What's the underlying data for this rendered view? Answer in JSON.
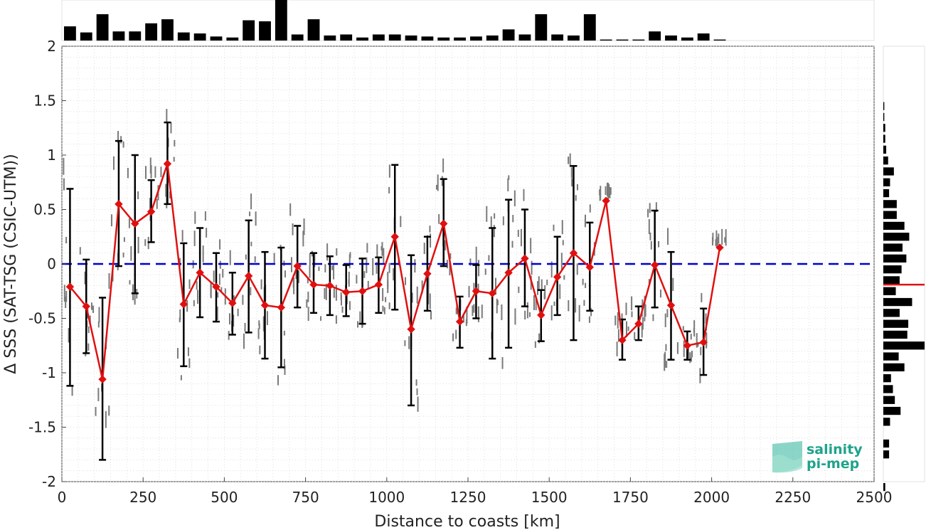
{
  "chart_data": {
    "type": "line",
    "xlabel": "Distance to coasts [km]",
    "ylabel": "Δ SSS (SAT-TSG (CSIC-UTM))",
    "xlim": [
      0,
      2500
    ],
    "ylim": [
      -2,
      2
    ],
    "xticks": [
      "0",
      "250",
      "500",
      "750",
      "1000",
      "1250",
      "1500",
      "1750",
      "2000",
      "2250",
      "2500"
    ],
    "yticks": [
      "2",
      "1.5",
      "1",
      "0.5",
      "0",
      "-0.5",
      "-1",
      "-1.5",
      "-2"
    ],
    "grid": true,
    "reference_line": {
      "y": 0,
      "color": "#0000cc",
      "style": "dashed"
    },
    "mean_line": {
      "y": -0.19,
      "color": "#e01010"
    },
    "series": [
      {
        "color": "#e01010",
        "x": [
          25,
          75,
          125,
          175,
          225,
          275,
          325,
          375,
          425,
          475,
          525,
          575,
          625,
          675,
          725,
          775,
          825,
          875,
          925,
          975,
          1025,
          1075,
          1125,
          1175,
          1225,
          1275,
          1325,
          1375,
          1425,
          1475,
          1525,
          1575,
          1625,
          1675,
          1725,
          1775,
          1825,
          1875,
          1925,
          1975,
          2025
        ],
        "y": [
          -0.21,
          -0.39,
          -1.06,
          0.55,
          0.37,
          0.48,
          0.92,
          -0.37,
          -0.08,
          -0.21,
          -0.36,
          -0.11,
          -0.38,
          -0.4,
          -0.02,
          -0.19,
          -0.2,
          -0.26,
          -0.25,
          -0.19,
          0.25,
          -0.6,
          -0.09,
          0.37,
          -0.53,
          -0.25,
          -0.27,
          -0.08,
          0.05,
          -0.47,
          -0.12,
          0.1,
          -0.03,
          0.58,
          -0.7,
          -0.55,
          -0.01,
          -0.38,
          -0.75,
          -0.72,
          0.15
        ],
        "err_low": [
          -1.12,
          -0.82,
          -1.8,
          -0.02,
          -0.27,
          0.2,
          0.55,
          -0.94,
          -0.49,
          -0.53,
          -0.65,
          -0.63,
          -0.87,
          -0.95,
          -0.4,
          -0.45,
          -0.47,
          -0.48,
          -0.55,
          -0.45,
          -0.42,
          -1.3,
          -0.43,
          -0.02,
          -0.77,
          -0.5,
          -0.87,
          -0.77,
          -0.39,
          -0.71,
          -0.47,
          -0.7,
          -0.43,
          0.58,
          -0.88,
          -0.7,
          -0.4,
          -0.88,
          -0.88,
          -1.02,
          0.15
        ],
        "err_high": [
          0.69,
          0.04,
          -0.31,
          1.13,
          1.0,
          0.77,
          1.3,
          0.19,
          0.33,
          0.1,
          -0.08,
          0.4,
          0.11,
          0.15,
          0.35,
          0.1,
          0.07,
          -0.01,
          0.05,
          0.06,
          0.91,
          0.08,
          0.25,
          0.78,
          -0.3,
          -0.01,
          0.33,
          0.59,
          0.5,
          -0.24,
          0.25,
          0.9,
          0.38,
          0.58,
          -0.51,
          -0.39,
          0.49,
          0.11,
          -0.62,
          -0.41,
          0.15
        ]
      }
    ],
    "top_histogram": {
      "bin_width_km": 50,
      "counts": [
        14,
        8,
        26,
        9,
        9,
        17,
        21,
        8,
        7,
        4,
        3,
        20,
        19,
        40,
        6,
        21,
        5,
        6,
        3,
        6,
        6,
        5,
        4,
        3,
        3,
        4,
        5,
        11,
        6,
        26,
        6,
        5,
        26,
        1,
        1,
        1,
        9,
        5,
        3,
        7,
        1,
        0,
        0,
        0,
        0,
        0,
        0,
        0,
        0,
        0
      ]
    },
    "right_histogram": {
      "bin_width": 0.1,
      "bins_from_y": 1.5,
      "counts": [
        1,
        1,
        2,
        2,
        3,
        5,
        11,
        7,
        6,
        14,
        14,
        22,
        27,
        20,
        24,
        19,
        17,
        13,
        30,
        17,
        26,
        25,
        43,
        16,
        22,
        8,
        10,
        12,
        18,
        7,
        0,
        6,
        6,
        0,
        0,
        2,
        0,
        0,
        0,
        0
      ]
    }
  },
  "logo": {
    "line1": "salinity",
    "line2": "pi-mep"
  }
}
